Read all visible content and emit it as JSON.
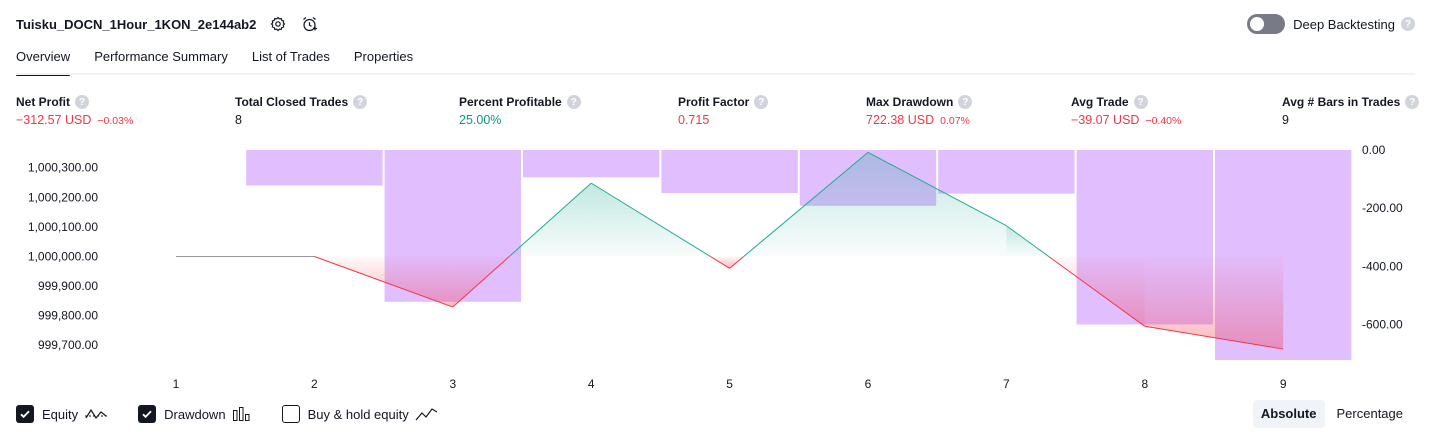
{
  "header": {
    "title": "Tuisku_DOCN_1Hour_1KON_2e144ab2",
    "deep_backtesting_label": "Deep Backtesting",
    "deep_backtesting_enabled": false,
    "help_glyph": "?"
  },
  "tabs": [
    {
      "label": "Overview",
      "active": true
    },
    {
      "label": "Performance Summary",
      "active": false
    },
    {
      "label": "List of Trades",
      "active": false
    },
    {
      "label": "Properties",
      "active": false
    }
  ],
  "metrics": [
    {
      "label": "Net Profit",
      "value": "−312.57 USD",
      "sub": "−0.03%",
      "tone": "neg"
    },
    {
      "label": "Total Closed Trades",
      "value": "8",
      "sub": "",
      "tone": "neutral"
    },
    {
      "label": "Percent Profitable",
      "value": "25.00%",
      "sub": "",
      "tone": "pos"
    },
    {
      "label": "Profit Factor",
      "value": "0.715",
      "sub": "",
      "tone": "neg"
    },
    {
      "label": "Max Drawdown",
      "value": "722.38 USD",
      "sub": "0.07%",
      "tone": "neg"
    },
    {
      "label": "Avg Trade",
      "value": "−39.07 USD",
      "sub": "−0.40%",
      "tone": "neg"
    },
    {
      "label": "Avg # Bars in Trades",
      "value": "9",
      "sub": "",
      "tone": "neutral"
    }
  ],
  "chart_data": {
    "type": "line",
    "x": [
      1,
      2,
      3,
      4,
      5,
      6,
      7,
      8,
      9
    ],
    "equity": {
      "values": [
        1000000,
        1000000,
        999829,
        1000248,
        999960,
        1000352,
        1000104,
        999764,
        999687
      ],
      "baseline": 1000000,
      "up_color": "#22ab94",
      "down_color": "#f23645",
      "flat_color": "#9598a1"
    },
    "drawdown": {
      "bars": [
        {
          "x_from": 1.5,
          "x_to": 2.5,
          "value": -122
        },
        {
          "x_from": 2.5,
          "x_to": 3.5,
          "value": -522
        },
        {
          "x_from": 3.5,
          "x_to": 4.5,
          "value": -94
        },
        {
          "x_from": 4.5,
          "x_to": 5.5,
          "value": -148
        },
        {
          "x_from": 5.5,
          "x_to": 6.5,
          "value": -192
        },
        {
          "x_from": 6.5,
          "x_to": 7.5,
          "value": -150
        },
        {
          "x_from": 7.5,
          "x_to": 8.5,
          "value": -600
        },
        {
          "x_from": 8.5,
          "x_to": 9.5,
          "value": -722
        }
      ],
      "color": "#e1bfff"
    },
    "left_axis": {
      "ylim": [
        999650,
        1000360
      ],
      "ticks": [
        1000300,
        1000200,
        1000100,
        1000000,
        999900,
        999800,
        999700
      ],
      "tick_labels": [
        "1,000,300.00",
        "1,000,200.00",
        "1,000,100.00",
        "1,000,000.00",
        "999,900.00",
        "999,800.00",
        "999,700.00"
      ]
    },
    "right_axis": {
      "ylim": [
        -722,
        0
      ],
      "ticks": [
        0,
        -200,
        -400,
        -600
      ],
      "tick_labels": [
        "0.00",
        "-200.00",
        "-400.00",
        "-600.00"
      ]
    },
    "x_tick_labels": [
      "1",
      "2",
      "3",
      "4",
      "5",
      "6",
      "7",
      "8",
      "9"
    ],
    "grid": false
  },
  "legend": [
    {
      "label": "Equity",
      "checked": true,
      "icon": "equity-line-icon"
    },
    {
      "label": "Drawdown",
      "checked": true,
      "icon": "drawdown-bars-icon"
    },
    {
      "label": "Buy & hold equity",
      "checked": false,
      "icon": "buy-hold-line-icon"
    }
  ],
  "modes": [
    {
      "label": "Absolute",
      "active": true
    },
    {
      "label": "Percentage",
      "active": false
    }
  ]
}
